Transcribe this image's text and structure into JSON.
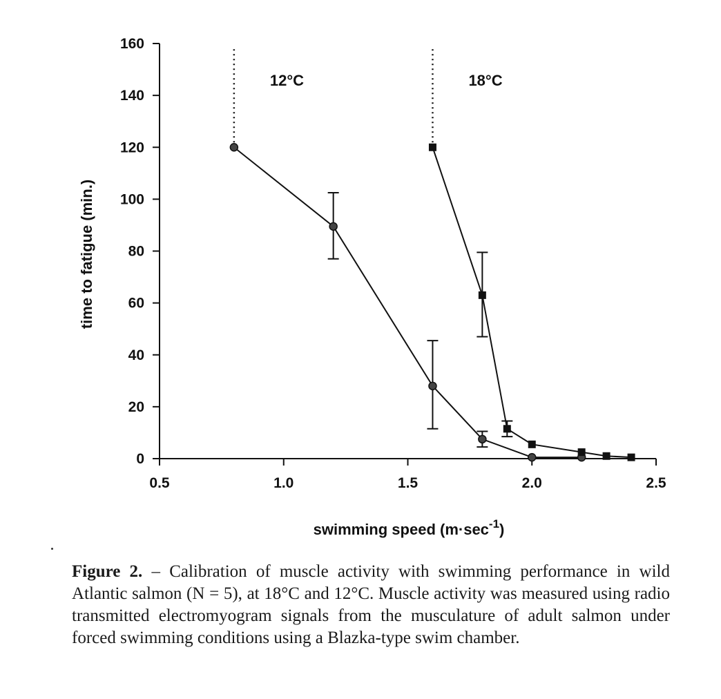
{
  "chart_data": {
    "type": "line",
    "xlabel": "swimming speed (m·sec",
    "xlabel_sup": "-1",
    "xlabel_close": ")",
    "ylabel": "time to fatigue (min.)",
    "xlim": [
      0.5,
      2.5
    ],
    "ylim": [
      0,
      160
    ],
    "x_ticks": [
      "0.5",
      "1.0",
      "1.5",
      "2.0",
      "2.5"
    ],
    "y_ticks": [
      "0",
      "20",
      "40",
      "60",
      "80",
      "100",
      "120",
      "140",
      "160"
    ],
    "grid": false,
    "series": [
      {
        "name": "12°C",
        "marker": "circle",
        "x": [
          0.8,
          1.2,
          1.6,
          1.8,
          2.0,
          2.2
        ],
        "y": [
          120,
          89.5,
          28,
          7.5,
          0.5,
          0.5
        ],
        "err_low": [
          null,
          77,
          11.5,
          4.5,
          null,
          null
        ],
        "err_high": [
          null,
          102.5,
          45.5,
          10.5,
          null,
          null
        ],
        "dotted_to_top_at": 0.8
      },
      {
        "name": "18°C",
        "marker": "square",
        "x": [
          1.6,
          1.8,
          1.9,
          2.0,
          2.2,
          2.3,
          2.4
        ],
        "y": [
          120,
          63,
          11.5,
          5.5,
          2.5,
          1,
          0.5
        ],
        "err_low": [
          null,
          47,
          8.5,
          null,
          null,
          null,
          null
        ],
        "err_high": [
          null,
          79.5,
          14.5,
          null,
          null,
          null,
          null
        ],
        "dotted_to_top_at": 1.6
      }
    ]
  },
  "caption": {
    "lead": "Figure 2.",
    "text": " – Calibration of muscle activity with swimming performance in wild Atlantic salmon (N = 5), at 18°C and 12°C. Muscle activity was measured using radio transmitted electromyogram signals from the musculature of adult salmon under forced swimming conditions using a Blazka-type swim chamber."
  }
}
